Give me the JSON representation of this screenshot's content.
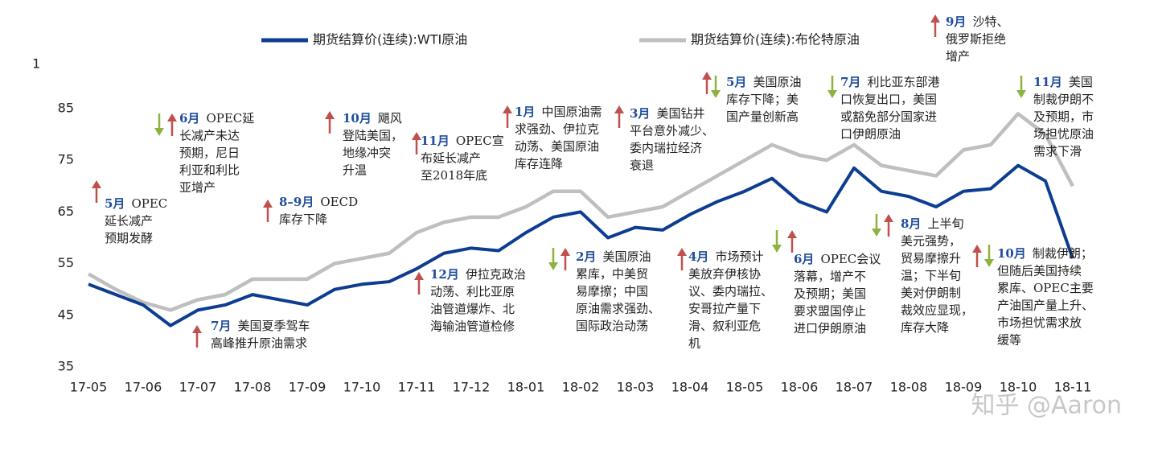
{
  "chart_data": {
    "type": "line",
    "y_label": "1",
    "categories": [
      "17-05",
      null,
      "17-06",
      null,
      "17-07",
      null,
      "17-08",
      null,
      "17-09",
      null,
      "17-10",
      null,
      "17-11",
      null,
      "17-12",
      null,
      "18-01",
      null,
      "18-02",
      null,
      "18-03",
      null,
      "18-04",
      null,
      "18-05",
      null,
      "18-06",
      null,
      "18-07",
      null,
      "18-08",
      null,
      "18-09",
      null,
      "18-10",
      null,
      "18-11"
    ],
    "series": [
      {
        "name": "期货结算价(连续):WTI原油",
        "color": "#0d3d91",
        "values": [
          51,
          49,
          47,
          43,
          46,
          47,
          49,
          48,
          47,
          50,
          51,
          51.5,
          54,
          57,
          58,
          57.5,
          61,
          64,
          65,
          60,
          62,
          61.5,
          64.5,
          67,
          69,
          71.5,
          67,
          65,
          73.5,
          69,
          68,
          66,
          69,
          69.5,
          74,
          71,
          56
        ]
      },
      {
        "name": "期货结算价(连续):布伦特原油",
        "color": "#bfbfbf",
        "values": [
          53,
          50,
          47.5,
          46,
          48,
          49,
          52,
          52,
          52,
          55,
          56,
          57,
          61,
          63,
          64,
          64,
          66,
          69,
          69,
          64,
          65,
          66,
          69,
          72,
          75,
          78,
          76,
          75,
          78,
          74,
          73,
          72,
          77,
          78,
          84,
          80,
          70
        ]
      }
    ],
    "ylim": [
      35,
      90
    ],
    "yticks": [
      35,
      45,
      55,
      65,
      75,
      85
    ],
    "grid": false,
    "annotations": [
      {
        "month": "5月",
        "lines": [
          "OPEC",
          "延长减产",
          "预期发酵"
        ]
      },
      {
        "month": "6月",
        "lines": [
          "OPEC延",
          "长减产未达",
          "预期，尼日",
          "利亚和利比",
          "亚增产"
        ]
      },
      {
        "month": "7月",
        "lines": [
          "美国夏季驾车",
          "高峰推升原油需求"
        ]
      },
      {
        "month": "8–9月",
        "lines": [
          "OECD",
          "库存下降"
        ]
      },
      {
        "month": "10月",
        "lines": [
          "飓风",
          "登陆美国，",
          "地缘冲突",
          "升温"
        ]
      },
      {
        "month": "11月",
        "lines": [
          "OPEC宣",
          "布延长减产",
          "至2018年底"
        ]
      },
      {
        "month": "12月",
        "lines": [
          "伊拉克政治",
          "动荡、利比亚原",
          "油管道爆炸、北",
          "海输油管道检修"
        ]
      },
      {
        "month": "1月",
        "lines": [
          "中国原油需",
          "求强劲、伊拉克",
          "动荡、美国原油",
          "库存连降"
        ]
      },
      {
        "month": "2月",
        "lines": [
          "美国原油",
          "累库，中美贸",
          "易摩擦；中国",
          "原油需求强劲、",
          "国际政治动荡"
        ]
      },
      {
        "month": "3月",
        "lines": [
          "美国钻井",
          "平台意外减少、",
          "委内瑞拉经济",
          "衰退"
        ]
      },
      {
        "month": "4月",
        "lines": [
          "市场预计",
          "美放弃伊核协",
          "议、委内瑞拉、",
          "安哥拉产量下",
          "滑、叙利亚危",
          "机"
        ]
      },
      {
        "month": "5月",
        "lines": [
          "美国原油",
          "库存下降；美",
          "国产量创新高"
        ]
      },
      {
        "month": "6月",
        "lines": [
          "OPEC会议",
          "落幕，增产不",
          "及预期；美国",
          "要求盟国停止",
          "进口伊朗原油"
        ]
      },
      {
        "month": "7月",
        "lines": [
          "利比亚东部港",
          "口恢复出口，美国",
          "或豁免部分国家进",
          "口伊朗原油"
        ]
      },
      {
        "month": "8月",
        "lines": [
          "上半旬",
          "美元强势，",
          "贸易摩擦升",
          "温；下半旬",
          "美对伊朗制",
          "裁效应显现，",
          "库存大降"
        ]
      },
      {
        "month": "9月",
        "lines": [
          "沙特、",
          "俄罗斯拒绝",
          "增产"
        ]
      },
      {
        "month": "10月",
        "lines": [
          "制裁伊朗；",
          "但随后美国持续",
          "累库、OPEC主要",
          "产油国产量上升、",
          "市场担忧需求放",
          "缓等"
        ]
      },
      {
        "month": "11月",
        "lines": [
          "美国",
          "制裁伊朗不",
          "及预期，市",
          "场担忧原油",
          "需求下滑"
        ]
      }
    ],
    "watermark": "知乎 @Aaron"
  }
}
